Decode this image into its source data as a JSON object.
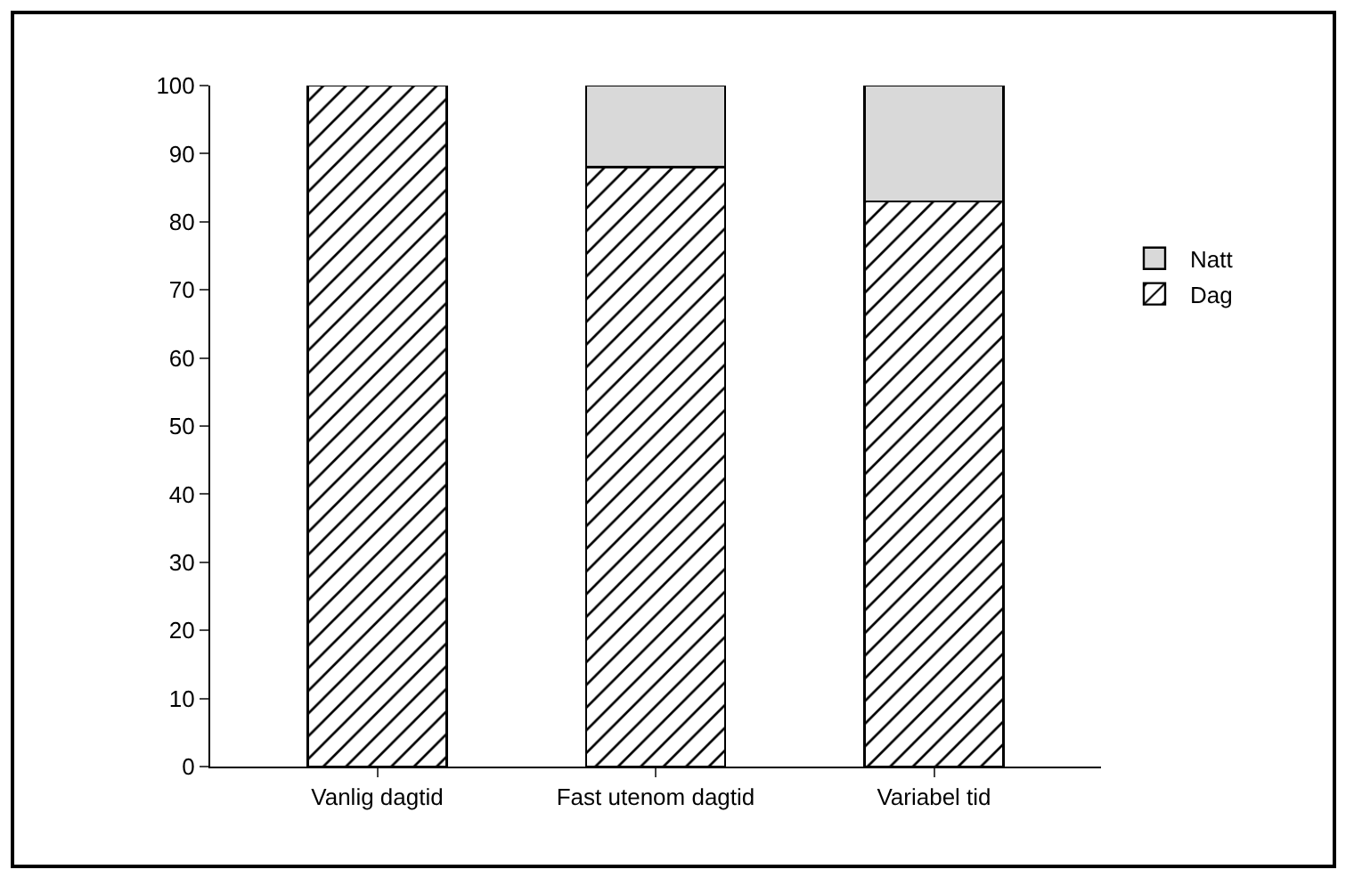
{
  "chart_data": {
    "type": "bar",
    "stacked": true,
    "categories": [
      "Vanlig dagtid",
      "Fast utenom dagtid",
      "Variabel tid"
    ],
    "series": [
      {
        "name": "Dag",
        "color": "#000000",
        "values": [
          100,
          88,
          83
        ]
      },
      {
        "name": "Natt",
        "color": "#d9d9d9",
        "values": [
          null,
          12,
          17
        ]
      }
    ],
    "ylim": [
      0,
      100
    ],
    "yticks": [
      0,
      10,
      20,
      30,
      40,
      50,
      60,
      70,
      80,
      90,
      100
    ],
    "grid": false,
    "legend": "right"
  }
}
